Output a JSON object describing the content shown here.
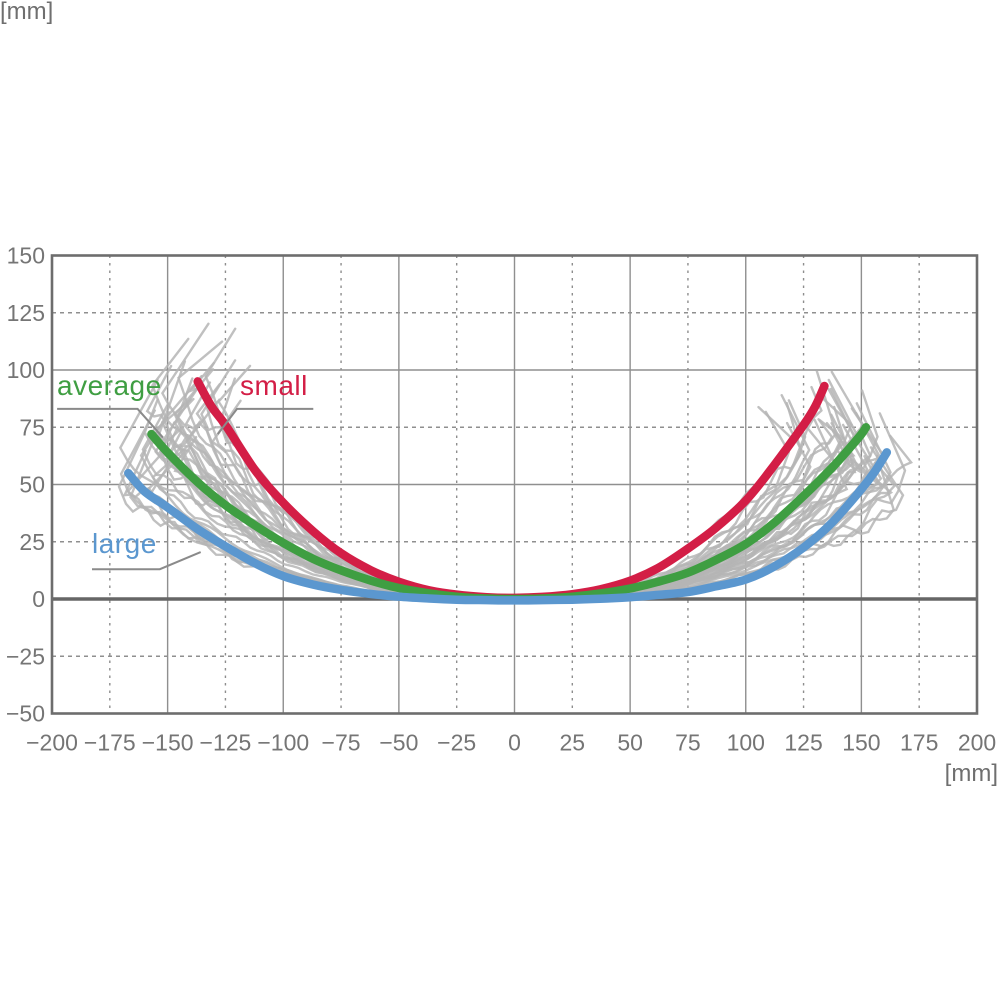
{
  "chart_data": {
    "type": "line",
    "title": "",
    "x_axis": {
      "unit": "[mm]",
      "min": -200,
      "max": 200,
      "ticks": [
        -200,
        -175,
        -150,
        -125,
        -100,
        -75,
        -50,
        -25,
        0,
        25,
        50,
        75,
        100,
        125,
        150,
        175,
        200
      ]
    },
    "y_axis": {
      "unit": "[mm]",
      "min": -50,
      "max": 150,
      "ticks": [
        150,
        125,
        100,
        75,
        50,
        25,
        0,
        -25,
        -50
      ]
    },
    "grid": {
      "solid_every_mm": 50,
      "dashed_every_mm": 25,
      "zero_line_emphasized": true
    },
    "series": [
      {
        "name": "small",
        "color": "#d31e46",
        "points": [
          [
            -137,
            95
          ],
          [
            -131,
            84
          ],
          [
            -125,
            76
          ],
          [
            -112,
            56
          ],
          [
            -100,
            42
          ],
          [
            -87,
            29.5
          ],
          [
            -75,
            20
          ],
          [
            -62,
            12.5
          ],
          [
            -50,
            7.5
          ],
          [
            -37,
            3.8
          ],
          [
            -25,
            1.9
          ],
          [
            -12,
            0.8
          ],
          [
            0,
            0.5
          ],
          [
            12,
            0.9
          ],
          [
            25,
            2.1
          ],
          [
            37,
            4.2
          ],
          [
            50,
            8
          ],
          [
            62,
            13.5
          ],
          [
            75,
            22
          ],
          [
            87,
            31
          ],
          [
            100,
            43
          ],
          [
            112,
            58
          ],
          [
            125,
            76
          ],
          [
            130,
            84
          ],
          [
            134,
            93
          ]
        ]
      },
      {
        "name": "average",
        "color": "#3f9e42",
        "points": [
          [
            -157,
            72
          ],
          [
            -150,
            64
          ],
          [
            -137,
            51
          ],
          [
            -125,
            41
          ],
          [
            -112,
            32
          ],
          [
            -100,
            24.5
          ],
          [
            -87,
            17.5
          ],
          [
            -75,
            12.5
          ],
          [
            -62,
            8
          ],
          [
            -50,
            4.8
          ],
          [
            -37,
            2.5
          ],
          [
            -25,
            1
          ],
          [
            -12,
            0.2
          ],
          [
            0,
            0
          ],
          [
            12,
            0.2
          ],
          [
            25,
            1
          ],
          [
            37,
            2.4
          ],
          [
            50,
            4.6
          ],
          [
            62,
            7.5
          ],
          [
            75,
            11.5
          ],
          [
            87,
            17
          ],
          [
            100,
            24
          ],
          [
            112,
            33
          ],
          [
            125,
            45
          ],
          [
            137,
            57
          ],
          [
            145,
            66
          ],
          [
            150,
            72
          ],
          [
            152,
            75
          ]
        ]
      },
      {
        "name": "large",
        "color": "#5b97cf",
        "points": [
          [
            -167,
            55
          ],
          [
            -160,
            47
          ],
          [
            -150,
            40
          ],
          [
            -137,
            30.5
          ],
          [
            -125,
            23
          ],
          [
            -112,
            15.5
          ],
          [
            -100,
            10
          ],
          [
            -87,
            6.3
          ],
          [
            -75,
            4
          ],
          [
            -62,
            2.2
          ],
          [
            -50,
            1
          ],
          [
            -37,
            0.2
          ],
          [
            -25,
            -0.3
          ],
          [
            -12,
            -0.5
          ],
          [
            0,
            -0.6
          ],
          [
            12,
            -0.5
          ],
          [
            25,
            -0.3
          ],
          [
            37,
            0.1
          ],
          [
            50,
            0.8
          ],
          [
            62,
            1.8
          ],
          [
            75,
            3
          ],
          [
            87,
            5.5
          ],
          [
            100,
            8.5
          ],
          [
            112,
            14
          ],
          [
            125,
            22.5
          ],
          [
            137,
            33
          ],
          [
            150,
            48
          ],
          [
            156,
            56
          ],
          [
            161,
            64
          ]
        ]
      }
    ],
    "sample_traces": {
      "description": "bundle of individual gray measurement traces spanning small-to-large range",
      "color": "#b5b5b5",
      "count": 38,
      "value_at_100mm_range": [
        10,
        40
      ],
      "end_x_abs_range": [
        120,
        168
      ],
      "end_y_range": [
        50,
        100
      ]
    },
    "annotations": [
      {
        "text": "average",
        "color": "#3f9e42",
        "leader_mm": [
          [
            -197.8,
            83
          ],
          [
            -163,
            83
          ],
          [
            -152,
            70.5
          ]
        ]
      },
      {
        "text": "small",
        "color": "#d31e46",
        "leader_mm": [
          [
            -87,
            83
          ],
          [
            -120,
            83
          ],
          [
            -128.3,
            72
          ]
        ]
      },
      {
        "text": "large",
        "color": "#5b97cf",
        "leader_mm": [
          [
            -182.7,
            13
          ],
          [
            -153.4,
            13
          ],
          [
            -135.7,
            20.5
          ]
        ]
      }
    ]
  }
}
